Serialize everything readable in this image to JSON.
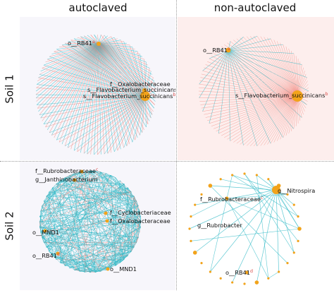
{
  "columns": [
    "autoclaved",
    "non-autoclaved"
  ],
  "rows": [
    "Soil 1",
    "Soil 2"
  ],
  "colors": {
    "edge_positive": "#f08a80",
    "edge_negative": "#2ab7c4",
    "node": "#f2a31b",
    "superscript": "#d9534f",
    "panel_autoclaved": "#f7f6fb",
    "panel_nonautoclaved": "#fdeeed"
  },
  "panels": {
    "soil1_autoclaved": {
      "labels": [
        {
          "name": "o__RB41",
          "sup": "a"
        },
        {
          "name": "f__Oxalobacteraceae",
          "sup": ""
        },
        {
          "name": "s__Flavobacterium_succinicans",
          "sup": ""
        },
        {
          "name": "s__Flavobacterium_succinicans",
          "sup": "b"
        }
      ]
    },
    "soil1_nonautoclaved": {
      "labels": [
        {
          "name": "o__RB41",
          "sup": "a"
        },
        {
          "name": "s__Flavobacterium_succinicans",
          "sup": "b"
        }
      ]
    },
    "soil2_autoclaved": {
      "labels": [
        {
          "name": "f__Rubrobacteraceae",
          "sup": "c"
        },
        {
          "name": "g__Janthinobacterium",
          "sup": ""
        },
        {
          "name": "f__Cyclobacteriaceae",
          "sup": ""
        },
        {
          "name": "f__Oxalobacteraceae",
          "sup": ""
        },
        {
          "name": "o__MND1",
          "sup": ""
        },
        {
          "name": "o__RB41",
          "sup": "d"
        },
        {
          "name": "o__MND1",
          "sup": ""
        }
      ]
    },
    "soil2_nonautoclaved": {
      "labels": [
        {
          "name": "g__Nitrospira",
          "sup": ""
        },
        {
          "name": "f__Rubrobacteraceae",
          "sup": "c"
        },
        {
          "name": "g__Rubrobacter",
          "sup": ""
        },
        {
          "name": "o__RB41",
          "sup": "d"
        }
      ]
    }
  }
}
